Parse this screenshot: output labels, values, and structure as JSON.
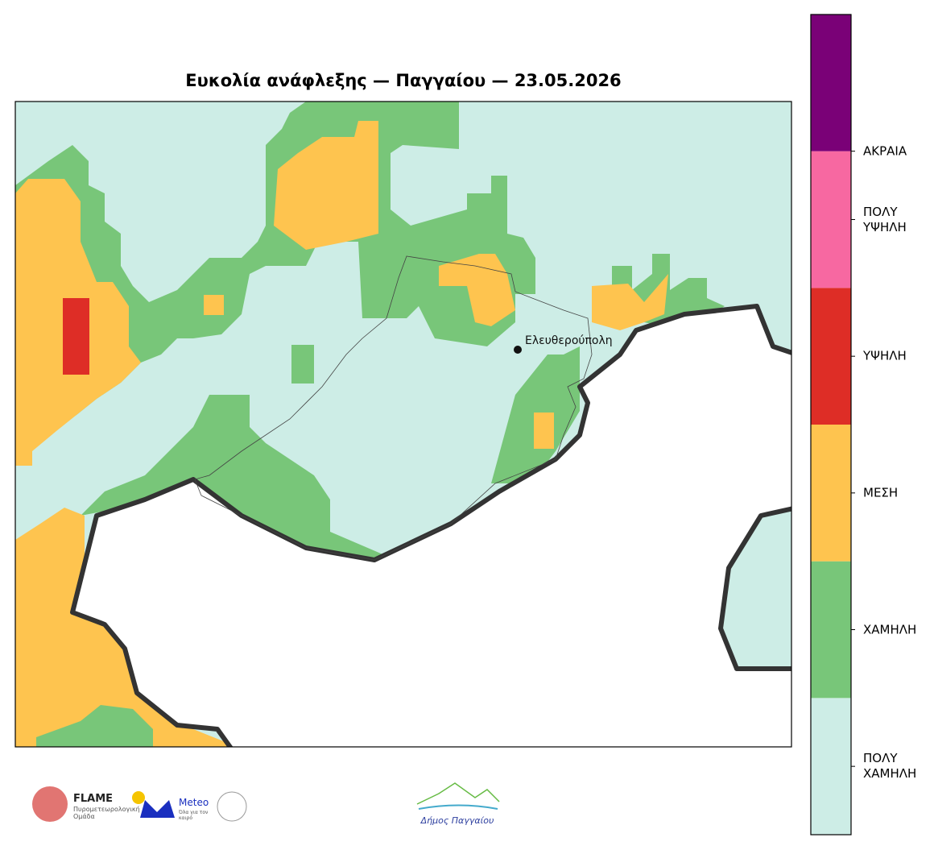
{
  "title": "Ευκολία ανάφλεξης — Παγγαίου — 23.05.2026",
  "place_label": "Ελευθερούπολη",
  "legend": {
    "levels": [
      {
        "label": "ΠΟΛΥ ΧΑΜΗΛΗ",
        "color": "#cdede6"
      },
      {
        "label": "ΧΑΜΗΛΗ",
        "color": "#78c679"
      },
      {
        "label": "ΜΕΣΗ",
        "color": "#fec44f"
      },
      {
        "label": "ΥΨΗΛΗ",
        "color": "#de2d26"
      },
      {
        "label": "ΠΟΛΥ ΥΨΗΛΗ",
        "color": "#f768a1"
      },
      {
        "label": "ΑΚΡΑΙΑ",
        "color": "#7a0177"
      }
    ]
  },
  "logos": {
    "flame": "FLAME",
    "flame_subtitle": "Πυρομετεωρολογική Ομάδα",
    "meteo": "Meteo",
    "meteo_subtitle": "Όλα για τον καιρό",
    "municipality": "Δήμος Παγγαίου"
  }
}
